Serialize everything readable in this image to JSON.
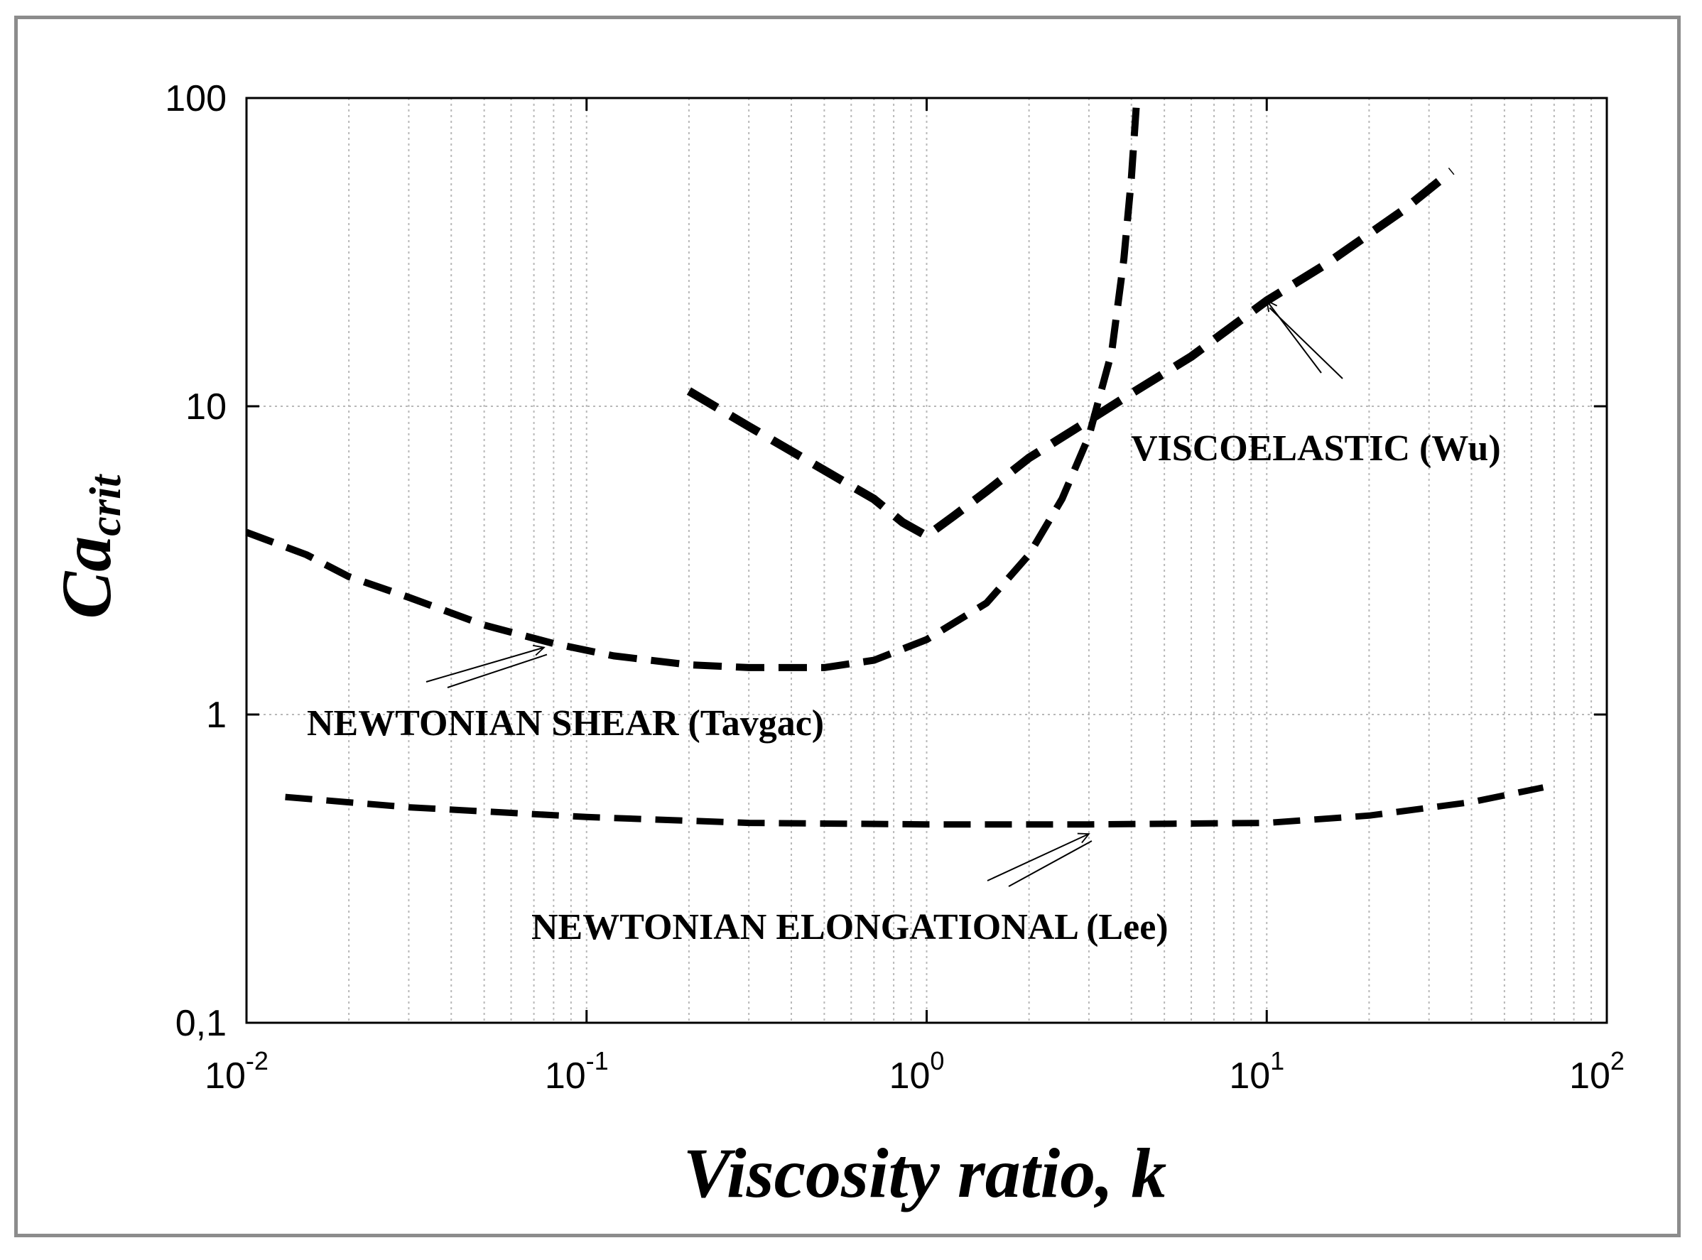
{
  "chart_data": {
    "type": "line",
    "title": "",
    "xlabel": "Viscosity ratio, k",
    "ylabel_main": "Ca",
    "ylabel_sub": "crit",
    "xscale": "log",
    "yscale": "log",
    "xlim": [
      0.01,
      100
    ],
    "ylim": [
      0.1,
      100
    ],
    "grid": true,
    "x_ticks": [
      {
        "value": 0.01,
        "base": "10",
        "exp": "-2"
      },
      {
        "value": 0.1,
        "base": "10",
        "exp": "-1"
      },
      {
        "value": 1,
        "base": "10",
        "exp": "0"
      },
      {
        "value": 10,
        "base": "10",
        "exp": "1"
      },
      {
        "value": 100,
        "base": "10",
        "exp": "2"
      }
    ],
    "y_ticks": [
      {
        "value": 0.1,
        "label": "0,1"
      },
      {
        "value": 1,
        "label": "1"
      },
      {
        "value": 10,
        "label": "10"
      },
      {
        "value": 100,
        "label": "100"
      }
    ],
    "series": [
      {
        "name": "VISCOELASTIC (Wu)",
        "style": "dashed",
        "points": [
          [
            0.2,
            11.2
          ],
          [
            0.3,
            8.6
          ],
          [
            0.5,
            6.2
          ],
          [
            0.7,
            5.0
          ],
          [
            0.85,
            4.2
          ],
          [
            1.0,
            3.8
          ],
          [
            1.2,
            4.4
          ],
          [
            1.5,
            5.3
          ],
          [
            2.0,
            6.8
          ],
          [
            3.0,
            9.0
          ],
          [
            4.0,
            11.0
          ],
          [
            6.0,
            14.5
          ],
          [
            10.0,
            22.0
          ],
          [
            15.0,
            29.0
          ],
          [
            25.0,
            43.0
          ],
          [
            35.0,
            58.0
          ]
        ]
      },
      {
        "name": "NEWTONIAN SHEAR (Tavgac)",
        "style": "dashed",
        "points": [
          [
            0.01,
            3.9
          ],
          [
            0.015,
            3.3
          ],
          [
            0.02,
            2.8
          ],
          [
            0.03,
            2.4
          ],
          [
            0.05,
            1.95
          ],
          [
            0.08,
            1.7
          ],
          [
            0.12,
            1.55
          ],
          [
            0.2,
            1.45
          ],
          [
            0.3,
            1.42
          ],
          [
            0.5,
            1.42
          ],
          [
            0.7,
            1.5
          ],
          [
            1.0,
            1.75
          ],
          [
            1.5,
            2.3
          ],
          [
            2.0,
            3.3
          ],
          [
            2.5,
            5.0
          ],
          [
            3.0,
            8.0
          ],
          [
            3.5,
            15.0
          ],
          [
            3.8,
            30.0
          ],
          [
            4.0,
            55.0
          ],
          [
            4.15,
            100.0
          ]
        ]
      },
      {
        "name": "NEWTONIAN ELONGATIONAL (Lee)",
        "style": "dashed",
        "points": [
          [
            0.013,
            0.54
          ],
          [
            0.03,
            0.5
          ],
          [
            0.1,
            0.465
          ],
          [
            0.3,
            0.445
          ],
          [
            1.0,
            0.44
          ],
          [
            3.0,
            0.44
          ],
          [
            10.0,
            0.445
          ],
          [
            20.0,
            0.47
          ],
          [
            40.0,
            0.52
          ],
          [
            65.0,
            0.58
          ]
        ]
      }
    ],
    "annotations": [
      {
        "id": "wu",
        "text": "VISCOELASTIC (Wu)",
        "arrow_to": [
          10.0,
          22.0
        ]
      },
      {
        "id": "tavgac",
        "text": "NEWTONIAN SHEAR (Tavgac)",
        "arrow_to": [
          0.075,
          1.65
        ]
      },
      {
        "id": "lee",
        "text": "NEWTONIAN ELONGATIONAL (Lee)",
        "arrow_to": [
          3.0,
          0.41
        ]
      }
    ]
  }
}
